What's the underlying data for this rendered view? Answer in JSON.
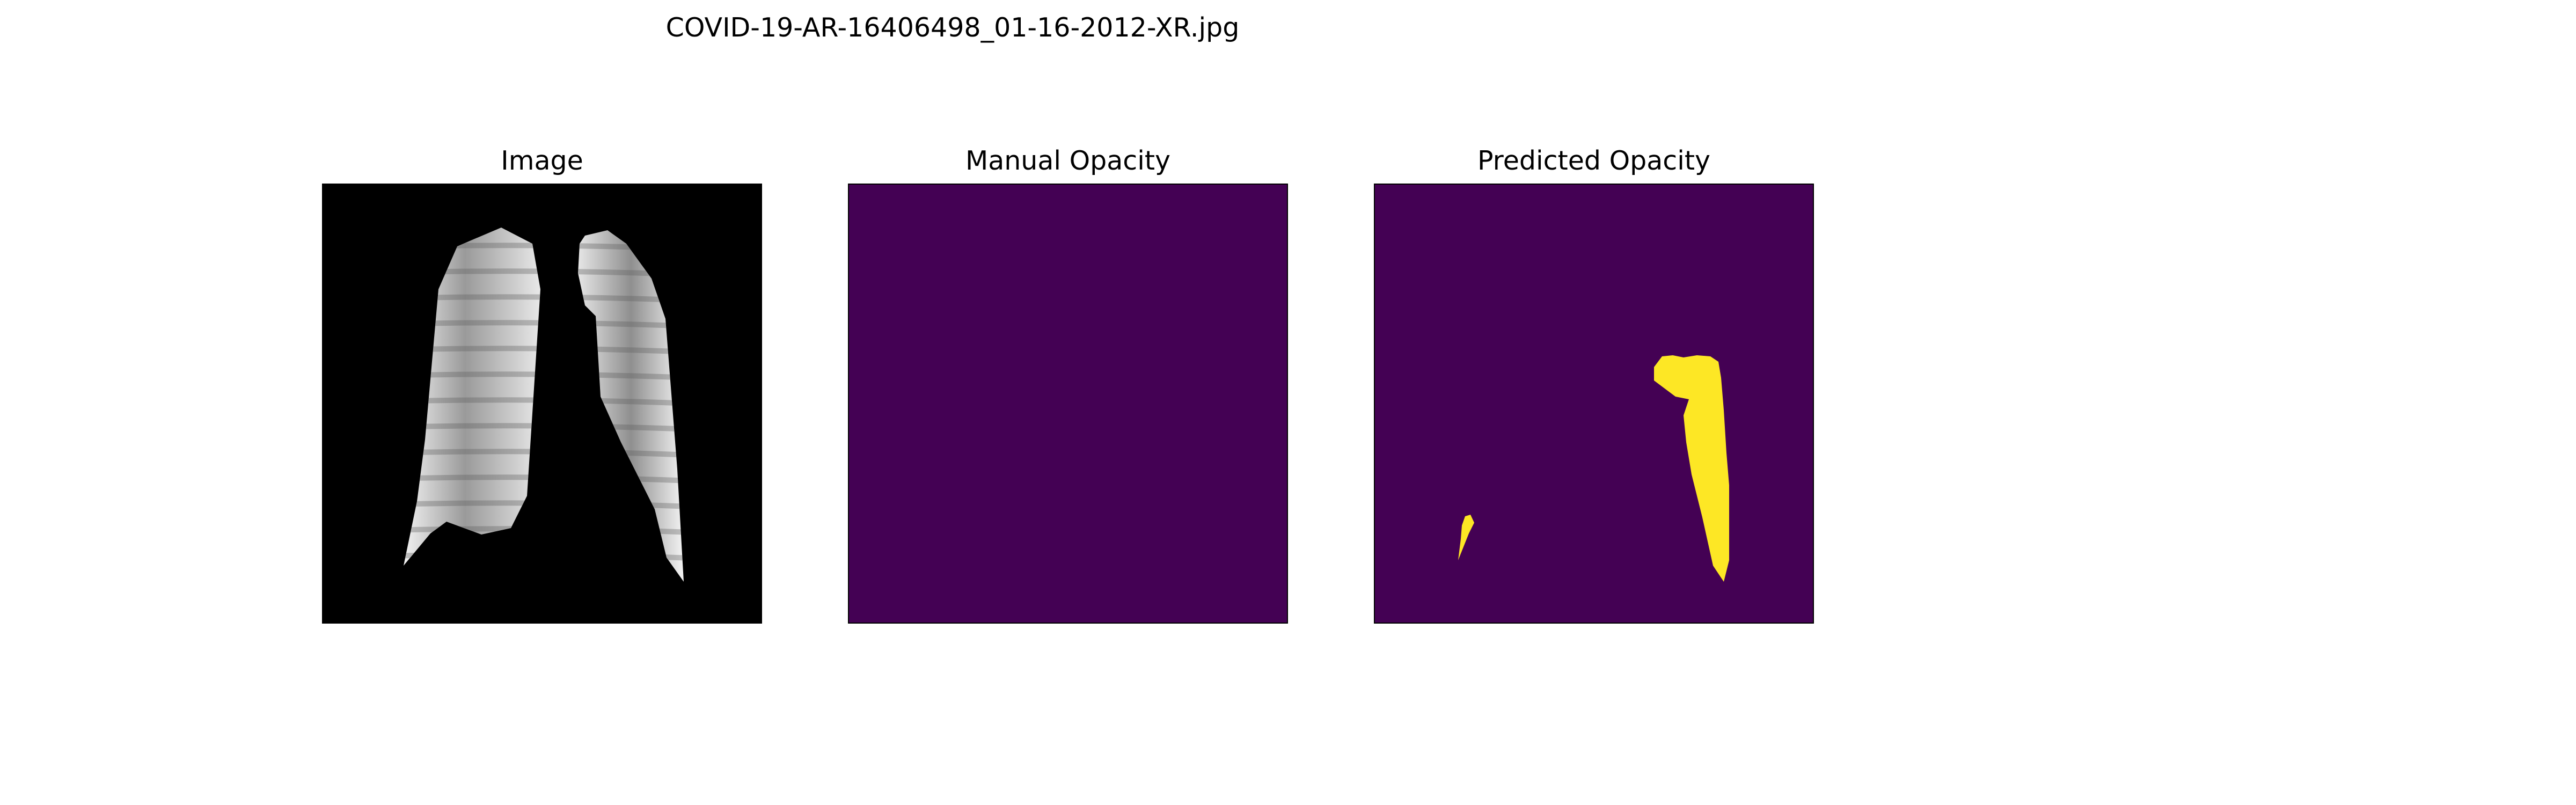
{
  "figure": {
    "title": "COVID-19-AR-16406498_01-16-2012-XR.jpg"
  },
  "panels": [
    {
      "title": "Image",
      "kind": "grayscale-xray",
      "background": "#000000"
    },
    {
      "title": "Manual Opacity",
      "kind": "mask",
      "background": "#440154"
    },
    {
      "title": "Predicted Opacity",
      "kind": "mask",
      "background": "#440154",
      "mask_color": "#fde725"
    }
  ]
}
